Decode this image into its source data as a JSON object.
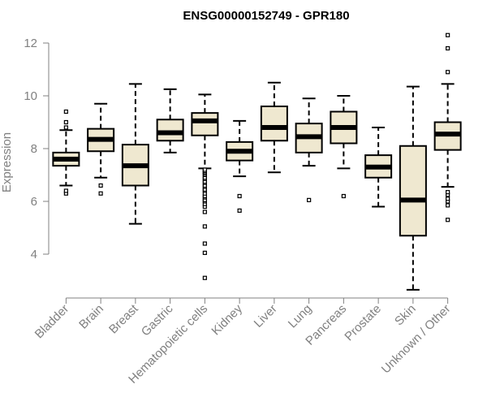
{
  "chart_data": {
    "type": "boxplot",
    "title": "ENSG00000152749 - GPR180",
    "xlabel": "",
    "ylabel": "Expression",
    "ylim": [
      2.5,
      12.5
    ],
    "yticks": [
      "4",
      "6",
      "8",
      "10",
      "12"
    ],
    "box_color": "#efe8d0",
    "categories": [
      {
        "label": "Bladder",
        "whisker_low": 6.6,
        "q1": 7.35,
        "median": 7.6,
        "q3": 7.85,
        "whisker_high": 8.7,
        "outliers": [
          6.3,
          6.4,
          8.8,
          9.0,
          9.4
        ]
      },
      {
        "label": "Brain",
        "whisker_low": 6.9,
        "q1": 7.9,
        "median": 8.35,
        "q3": 8.75,
        "whisker_high": 9.7,
        "outliers": [
          6.3,
          6.6
        ]
      },
      {
        "label": "Breast",
        "whisker_low": 5.15,
        "q1": 6.6,
        "median": 7.35,
        "q3": 8.15,
        "whisker_high": 10.45,
        "outliers": []
      },
      {
        "label": "Gastric",
        "whisker_low": 7.85,
        "q1": 8.3,
        "median": 8.6,
        "q3": 9.1,
        "whisker_high": 10.25,
        "outliers": []
      },
      {
        "label": "Hematopoietic cells",
        "whisker_low": 7.25,
        "q1": 8.5,
        "median": 9.05,
        "q3": 9.35,
        "whisker_high": 10.05,
        "outliers": [
          3.1,
          4.05,
          4.4,
          5.05,
          5.6,
          5.8,
          5.9,
          6.0,
          6.05,
          6.15,
          6.2,
          6.3,
          6.4,
          6.45,
          6.55,
          6.6,
          6.7,
          6.75,
          6.85,
          6.9,
          7.0,
          7.05,
          7.1,
          7.15,
          7.2
        ]
      },
      {
        "label": "Kidney",
        "whisker_low": 6.95,
        "q1": 7.55,
        "median": 7.9,
        "q3": 8.25,
        "whisker_high": 9.05,
        "outliers": [
          5.65,
          6.2
        ]
      },
      {
        "label": "Liver",
        "whisker_low": 7.1,
        "q1": 8.3,
        "median": 8.8,
        "q3": 9.6,
        "whisker_high": 10.5,
        "outliers": []
      },
      {
        "label": "Lung",
        "whisker_low": 7.35,
        "q1": 7.85,
        "median": 8.45,
        "q3": 8.95,
        "whisker_high": 9.9,
        "outliers": [
          6.05
        ]
      },
      {
        "label": "Pancreas",
        "whisker_low": 7.25,
        "q1": 8.2,
        "median": 8.8,
        "q3": 9.4,
        "whisker_high": 10.0,
        "outliers": [
          6.2
        ]
      },
      {
        "label": "Prostate",
        "whisker_low": 5.8,
        "q1": 6.9,
        "median": 7.3,
        "q3": 7.75,
        "whisker_high": 8.8,
        "outliers": []
      },
      {
        "label": "Skin",
        "whisker_low": 2.65,
        "q1": 4.7,
        "median": 6.05,
        "q3": 8.1,
        "whisker_high": 10.35,
        "outliers": []
      },
      {
        "label": "Unknown / Other",
        "whisker_low": 6.55,
        "q1": 7.95,
        "median": 8.55,
        "q3": 9.0,
        "whisker_high": 10.45,
        "outliers": [
          5.3,
          5.85,
          6.0,
          6.1,
          6.25,
          6.35,
          10.9,
          11.8,
          12.3
        ]
      }
    ]
  }
}
